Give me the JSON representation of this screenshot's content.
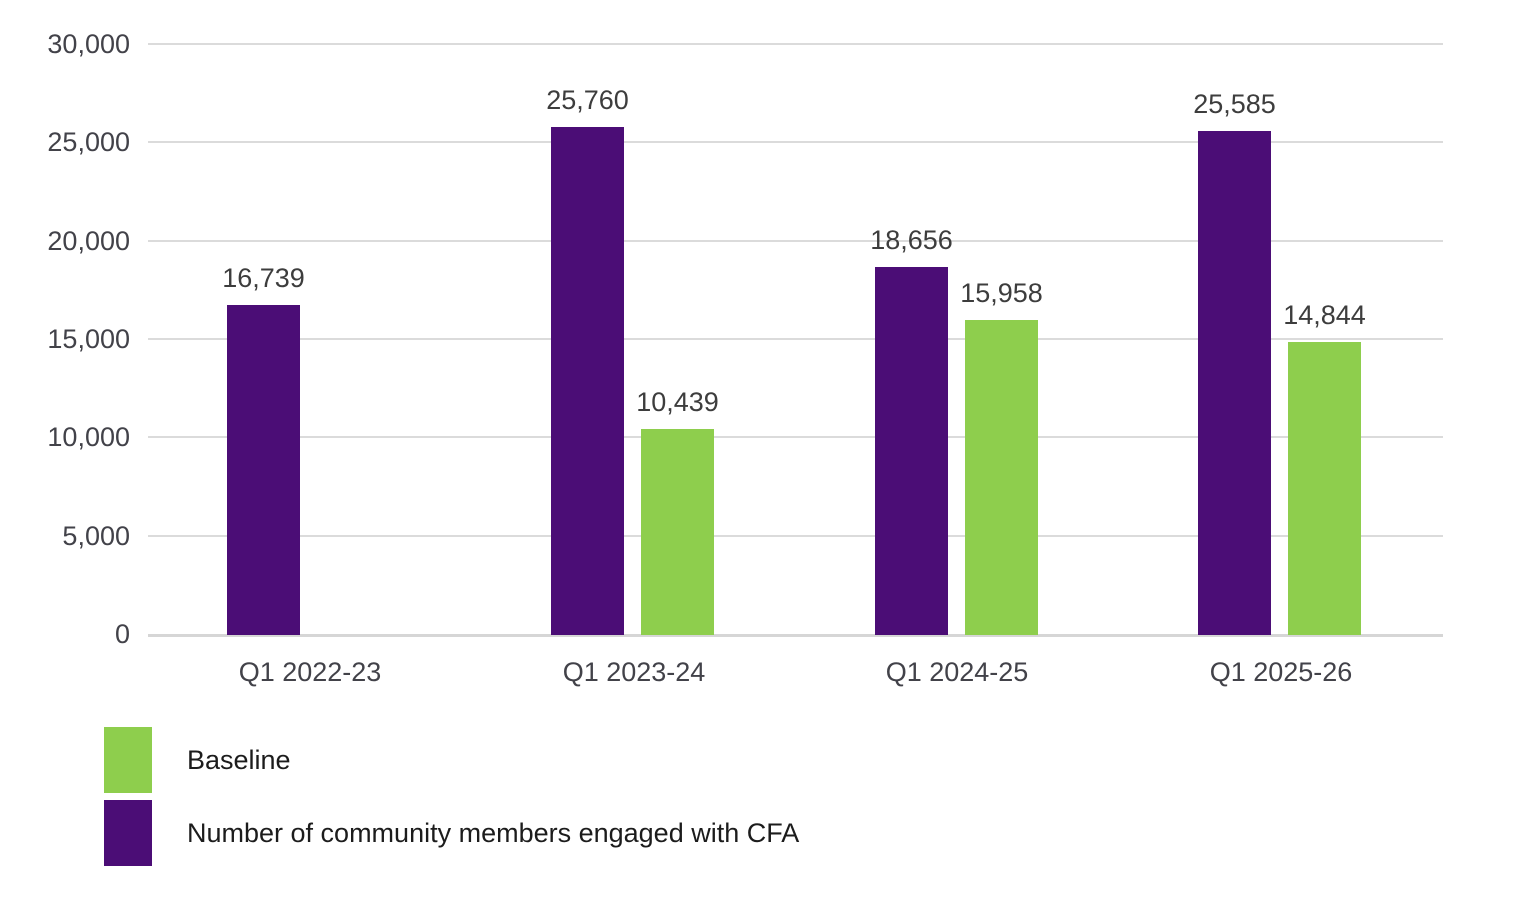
{
  "chart_data": {
    "type": "bar",
    "title": "",
    "categories": [
      "Q1 2022-23",
      "Q1 2023-24",
      "Q1 2024-25",
      "Q1 2025-26"
    ],
    "series": [
      {
        "name": "Number of community members engaged with CFA",
        "color": "#4B0D76",
        "values": [
          16739,
          25760,
          18656,
          25585
        ],
        "value_labels": [
          "16,739",
          "25,760",
          "18,656",
          "25,585"
        ]
      },
      {
        "name": "Baseline",
        "color": "#8ECE4D",
        "values": [
          null,
          10439,
          15958,
          14844
        ],
        "value_labels": [
          null,
          "10,439",
          "15,958",
          "14,844"
        ]
      }
    ],
    "ylim": [
      0,
      30000
    ],
    "ytick_step": 5000,
    "ytick_labels": [
      "0",
      "5,000",
      "10,000",
      "15,000",
      "20,000",
      "25,000",
      "30,000"
    ],
    "grid": true,
    "gridline_color": "#dbdbdb",
    "axis_text_color": "#424249",
    "value_label_color": "#3d3d3d",
    "legend_position": "bottom-left",
    "legend": [
      {
        "label": "Baseline",
        "color": "#8ECE4D"
      },
      {
        "label": "Number of community members engaged with CFA",
        "color": "#4B0D76"
      }
    ]
  }
}
